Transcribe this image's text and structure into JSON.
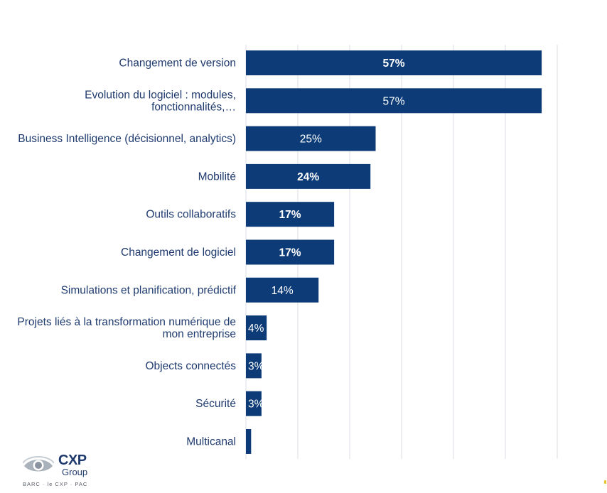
{
  "chart_data": {
    "type": "bar",
    "orientation": "horizontal",
    "categories": [
      [
        "Changement de version"
      ],
      [
        "Evolution du logiciel : modules,",
        "fonctionnalités,…"
      ],
      [
        "Business Intelligence (décisionnel, analytics)"
      ],
      [
        "Mobilité"
      ],
      [
        "Outils collaboratifs"
      ],
      [
        "Changement de logiciel"
      ],
      [
        "Simulations et planification, prédictif"
      ],
      [
        "Projets liés à la transformation numérique de",
        "mon entreprise"
      ],
      [
        "Objects connectés"
      ],
      [
        "Sécurité"
      ],
      [
        "Multicanal"
      ]
    ],
    "values": [
      57,
      57,
      25,
      24,
      17,
      17,
      14,
      4,
      3,
      3,
      1
    ],
    "data_labels": [
      "57%",
      "57%",
      "25%",
      "24%",
      "17%",
      "17%",
      "14%",
      "4%",
      "3%",
      "3%",
      ""
    ],
    "bold_labels": [
      true,
      false,
      false,
      true,
      true,
      true,
      false,
      false,
      false,
      false,
      false
    ],
    "xlim": [
      0,
      60
    ],
    "grid": true,
    "legend": "none",
    "bar_color": "#0c3b77",
    "label_color": "#1f3a6e",
    "title": "",
    "xlabel": "",
    "ylabel": ""
  },
  "logo": {
    "word": "CXP",
    "sub": "Group",
    "tagline": "BARC · le CXP · PAC",
    "eye_icon": "eye-icon"
  }
}
